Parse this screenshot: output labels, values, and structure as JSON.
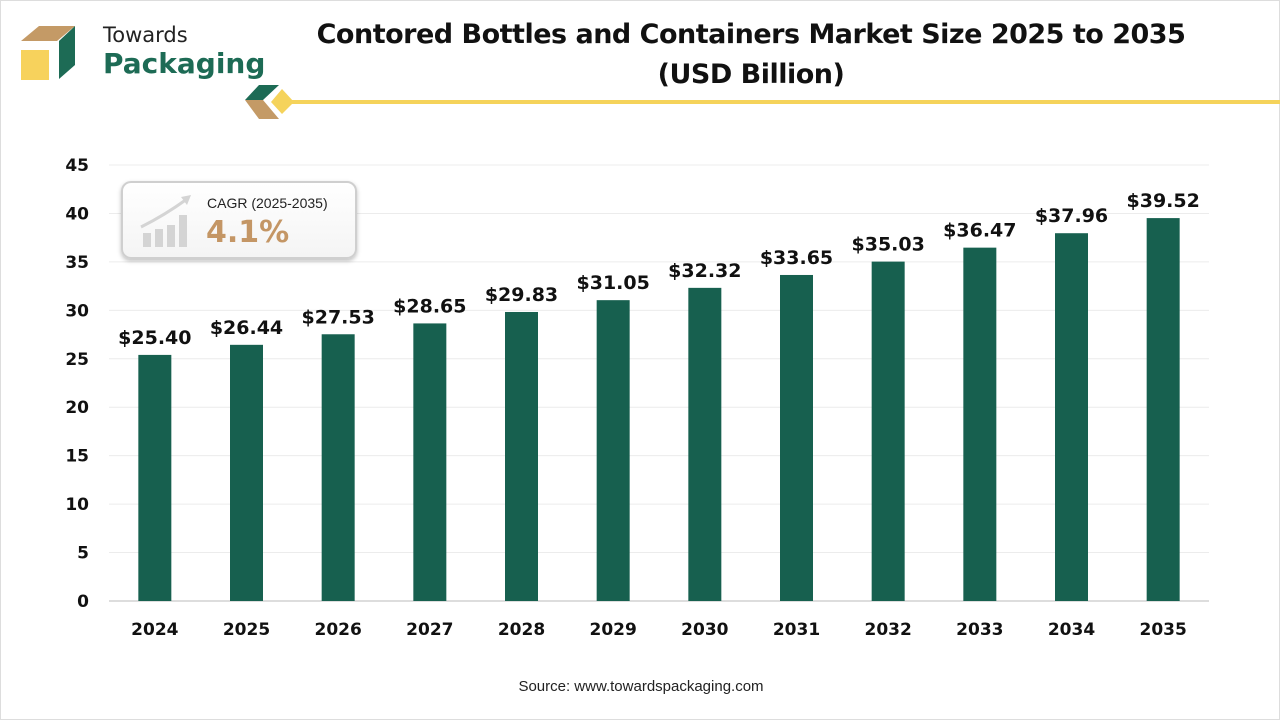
{
  "logo": {
    "line1": "Towards",
    "line2": "Packaging"
  },
  "chart_data": {
    "type": "bar",
    "title": "Contored Bottles and Containers Market Size 2025 to 2035",
    "subtitle": "(USD Billion)",
    "categories": [
      "2024",
      "2025",
      "2026",
      "2027",
      "2028",
      "2029",
      "2030",
      "2031",
      "2032",
      "2033",
      "2034",
      "2035"
    ],
    "values": [
      25.4,
      26.44,
      27.53,
      28.65,
      29.83,
      31.05,
      32.32,
      33.65,
      35.03,
      36.47,
      37.96,
      39.52
    ],
    "data_labels": [
      "$25.40",
      "$26.44",
      "$27.53",
      "$28.65",
      "$29.83",
      "$31.05",
      "$32.32",
      "$33.65",
      "$35.03",
      "$36.47",
      "$37.96",
      "$39.52"
    ],
    "yticks": [
      "0",
      "5",
      "10",
      "15",
      "20",
      "25",
      "30",
      "35",
      "40",
      "45"
    ],
    "ylim": [
      0,
      45
    ],
    "grid": true,
    "bar_color": "#17604f",
    "xlabel": "",
    "ylabel": ""
  },
  "cagr": {
    "label": "CAGR (2025-2035)",
    "value": "4.1%",
    "icon": "growth-chart-icon"
  },
  "source": "Source: www.towardspackaging.com",
  "colors": {
    "accent_yellow": "#f5d35b",
    "brand_green": "#1d6b55",
    "brand_tan": "#c49665"
  }
}
